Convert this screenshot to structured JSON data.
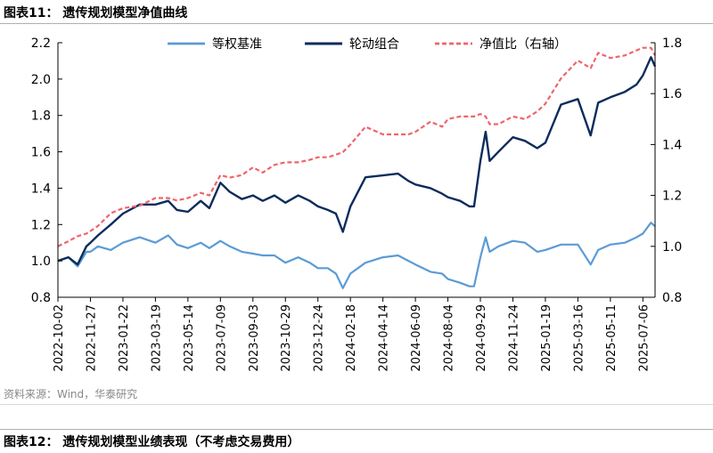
{
  "figure_title": "图表11：  遗传规划模型净值曲线",
  "source": "资料来源：Wind，华泰研究",
  "next_figure_title": "图表12：  遗传规划模型业绩表现（不考虑交易费用）",
  "colors": {
    "benchmark": "#5b9bd5",
    "rotation": "#0c2c5c",
    "ratio": "#f0646a",
    "axis": "#000000"
  },
  "chart_data": {
    "type": "line",
    "title": "",
    "grid": false,
    "legend_position": "top",
    "categories": [
      "2022-10-02",
      "2022-11-27",
      "2023-01-22",
      "2023-03-19",
      "2023-05-14",
      "2023-07-09",
      "2023-09-03",
      "2023-10-29",
      "2023-12-24",
      "2024-02-18",
      "2024-04-14",
      "2024-06-09",
      "2024-08-04",
      "2024-09-29",
      "2024-11-24",
      "2025-01-19",
      "2025-03-16",
      "2025-05-11",
      "2025-07-06"
    ],
    "x_range": [
      "2022-10-02",
      "2025-07-27"
    ],
    "y_left": {
      "min": 0.8,
      "max": 2.2,
      "ticks": [
        "0.8",
        "1.0",
        "1.2",
        "1.4",
        "1.6",
        "1.8",
        "2.0",
        "2.2"
      ]
    },
    "y_right": {
      "min": 0.8,
      "max": 1.8,
      "ticks": [
        "0.8",
        "1.0",
        "1.2",
        "1.4",
        "1.6",
        "1.8"
      ]
    },
    "series": [
      {
        "name": "等权基准",
        "axis": "left",
        "style": "solid",
        "points": [
          [
            "2022-10-02",
            1.0
          ],
          [
            "2022-10-20",
            1.02
          ],
          [
            "2022-11-05",
            0.97
          ],
          [
            "2022-11-20",
            1.05
          ],
          [
            "2022-11-27",
            1.05
          ],
          [
            "2022-12-10",
            1.08
          ],
          [
            "2023-01-01",
            1.06
          ],
          [
            "2023-01-22",
            1.1
          ],
          [
            "2023-02-20",
            1.13
          ],
          [
            "2023-03-19",
            1.1
          ],
          [
            "2023-04-10",
            1.14
          ],
          [
            "2023-04-25",
            1.09
          ],
          [
            "2023-05-14",
            1.07
          ],
          [
            "2023-06-05",
            1.1
          ],
          [
            "2023-06-20",
            1.07
          ],
          [
            "2023-07-09",
            1.11
          ],
          [
            "2023-07-25",
            1.08
          ],
          [
            "2023-08-15",
            1.05
          ],
          [
            "2023-09-03",
            1.04
          ],
          [
            "2023-09-20",
            1.03
          ],
          [
            "2023-10-10",
            1.03
          ],
          [
            "2023-10-29",
            0.99
          ],
          [
            "2023-11-20",
            1.02
          ],
          [
            "2023-12-10",
            0.99
          ],
          [
            "2023-12-24",
            0.96
          ],
          [
            "2024-01-10",
            0.96
          ],
          [
            "2024-01-24",
            0.93
          ],
          [
            "2024-02-05",
            0.85
          ],
          [
            "2024-02-18",
            0.93
          ],
          [
            "2024-03-15",
            0.99
          ],
          [
            "2024-04-14",
            1.02
          ],
          [
            "2024-05-10",
            1.03
          ],
          [
            "2024-05-28",
            1.0
          ],
          [
            "2024-06-09",
            0.98
          ],
          [
            "2024-07-05",
            0.94
          ],
          [
            "2024-07-25",
            0.93
          ],
          [
            "2024-08-04",
            0.9
          ],
          [
            "2024-08-25",
            0.88
          ],
          [
            "2024-09-10",
            0.86
          ],
          [
            "2024-09-18",
            0.86
          ],
          [
            "2024-09-29",
            1.02
          ],
          [
            "2024-10-08",
            1.13
          ],
          [
            "2024-10-15",
            1.05
          ],
          [
            "2024-10-30",
            1.08
          ],
          [
            "2024-11-24",
            1.11
          ],
          [
            "2024-12-15",
            1.1
          ],
          [
            "2025-01-05",
            1.05
          ],
          [
            "2025-01-19",
            1.06
          ],
          [
            "2025-02-15",
            1.09
          ],
          [
            "2025-03-16",
            1.09
          ],
          [
            "2025-04-07",
            0.98
          ],
          [
            "2025-04-20",
            1.06
          ],
          [
            "2025-05-11",
            1.09
          ],
          [
            "2025-06-05",
            1.1
          ],
          [
            "2025-06-25",
            1.13
          ],
          [
            "2025-07-06",
            1.15
          ],
          [
            "2025-07-20",
            1.21
          ],
          [
            "2025-07-27",
            1.19
          ]
        ]
      },
      {
        "name": "轮动组合",
        "axis": "left",
        "style": "solid",
        "points": [
          [
            "2022-10-02",
            1.0
          ],
          [
            "2022-10-20",
            1.02
          ],
          [
            "2022-11-05",
            0.98
          ],
          [
            "2022-11-20",
            1.08
          ],
          [
            "2022-11-27",
            1.1
          ],
          [
            "2022-12-10",
            1.14
          ],
          [
            "2023-01-01",
            1.2
          ],
          [
            "2023-01-22",
            1.26
          ],
          [
            "2023-02-20",
            1.31
          ],
          [
            "2023-03-19",
            1.31
          ],
          [
            "2023-04-10",
            1.33
          ],
          [
            "2023-04-25",
            1.28
          ],
          [
            "2023-05-14",
            1.27
          ],
          [
            "2023-06-05",
            1.33
          ],
          [
            "2023-06-20",
            1.29
          ],
          [
            "2023-07-09",
            1.43
          ],
          [
            "2023-07-25",
            1.38
          ],
          [
            "2023-08-15",
            1.34
          ],
          [
            "2023-09-03",
            1.36
          ],
          [
            "2023-09-20",
            1.33
          ],
          [
            "2023-10-10",
            1.36
          ],
          [
            "2023-10-29",
            1.32
          ],
          [
            "2023-11-20",
            1.36
          ],
          [
            "2023-12-10",
            1.33
          ],
          [
            "2023-12-24",
            1.3
          ],
          [
            "2024-01-10",
            1.28
          ],
          [
            "2024-01-24",
            1.26
          ],
          [
            "2024-02-05",
            1.16
          ],
          [
            "2024-02-18",
            1.3
          ],
          [
            "2024-03-15",
            1.46
          ],
          [
            "2024-04-14",
            1.47
          ],
          [
            "2024-05-10",
            1.48
          ],
          [
            "2024-05-28",
            1.44
          ],
          [
            "2024-06-09",
            1.42
          ],
          [
            "2024-07-05",
            1.4
          ],
          [
            "2024-07-25",
            1.37
          ],
          [
            "2024-08-04",
            1.35
          ],
          [
            "2024-08-25",
            1.33
          ],
          [
            "2024-09-10",
            1.3
          ],
          [
            "2024-09-18",
            1.3
          ],
          [
            "2024-09-29",
            1.55
          ],
          [
            "2024-10-08",
            1.71
          ],
          [
            "2024-10-15",
            1.55
          ],
          [
            "2024-10-30",
            1.6
          ],
          [
            "2024-11-24",
            1.68
          ],
          [
            "2024-12-15",
            1.66
          ],
          [
            "2025-01-05",
            1.62
          ],
          [
            "2025-01-19",
            1.65
          ],
          [
            "2025-02-15",
            1.86
          ],
          [
            "2025-03-16",
            1.89
          ],
          [
            "2025-04-07",
            1.69
          ],
          [
            "2025-04-20",
            1.87
          ],
          [
            "2025-05-11",
            1.9
          ],
          [
            "2025-06-05",
            1.93
          ],
          [
            "2025-06-25",
            1.97
          ],
          [
            "2025-07-06",
            2.02
          ],
          [
            "2025-07-20",
            2.12
          ],
          [
            "2025-07-27",
            2.07
          ]
        ]
      },
      {
        "name": "净值比（右轴）",
        "axis": "right",
        "style": "dashed",
        "points": [
          [
            "2022-10-02",
            1.0
          ],
          [
            "2022-10-20",
            1.02
          ],
          [
            "2022-11-05",
            1.04
          ],
          [
            "2022-11-20",
            1.05
          ],
          [
            "2022-11-27",
            1.06
          ],
          [
            "2022-12-10",
            1.08
          ],
          [
            "2023-01-01",
            1.13
          ],
          [
            "2023-01-22",
            1.15
          ],
          [
            "2023-02-20",
            1.16
          ],
          [
            "2023-03-19",
            1.19
          ],
          [
            "2023-04-10",
            1.19
          ],
          [
            "2023-04-25",
            1.18
          ],
          [
            "2023-05-14",
            1.19
          ],
          [
            "2023-06-05",
            1.21
          ],
          [
            "2023-06-20",
            1.2
          ],
          [
            "2023-07-09",
            1.28
          ],
          [
            "2023-07-25",
            1.27
          ],
          [
            "2023-08-15",
            1.28
          ],
          [
            "2023-09-03",
            1.31
          ],
          [
            "2023-09-20",
            1.29
          ],
          [
            "2023-10-10",
            1.32
          ],
          [
            "2023-10-29",
            1.33
          ],
          [
            "2023-11-20",
            1.33
          ],
          [
            "2023-12-10",
            1.34
          ],
          [
            "2023-12-24",
            1.35
          ],
          [
            "2024-01-10",
            1.35
          ],
          [
            "2024-01-24",
            1.36
          ],
          [
            "2024-02-05",
            1.37
          ],
          [
            "2024-02-18",
            1.4
          ],
          [
            "2024-03-15",
            1.47
          ],
          [
            "2024-04-14",
            1.44
          ],
          [
            "2024-05-10",
            1.44
          ],
          [
            "2024-05-28",
            1.44
          ],
          [
            "2024-06-09",
            1.45
          ],
          [
            "2024-07-05",
            1.49
          ],
          [
            "2024-07-25",
            1.47
          ],
          [
            "2024-08-04",
            1.5
          ],
          [
            "2024-08-25",
            1.51
          ],
          [
            "2024-09-10",
            1.51
          ],
          [
            "2024-09-18",
            1.51
          ],
          [
            "2024-09-29",
            1.52
          ],
          [
            "2024-10-08",
            1.51
          ],
          [
            "2024-10-15",
            1.48
          ],
          [
            "2024-10-30",
            1.48
          ],
          [
            "2024-11-24",
            1.51
          ],
          [
            "2024-12-15",
            1.5
          ],
          [
            "2025-01-05",
            1.53
          ],
          [
            "2025-01-19",
            1.56
          ],
          [
            "2025-02-15",
            1.66
          ],
          [
            "2025-03-16",
            1.73
          ],
          [
            "2025-04-07",
            1.7
          ],
          [
            "2025-04-20",
            1.76
          ],
          [
            "2025-05-11",
            1.74
          ],
          [
            "2025-06-05",
            1.75
          ],
          [
            "2025-06-25",
            1.77
          ],
          [
            "2025-07-06",
            1.78
          ],
          [
            "2025-07-20",
            1.78
          ],
          [
            "2025-07-27",
            1.75
          ]
        ]
      }
    ]
  }
}
